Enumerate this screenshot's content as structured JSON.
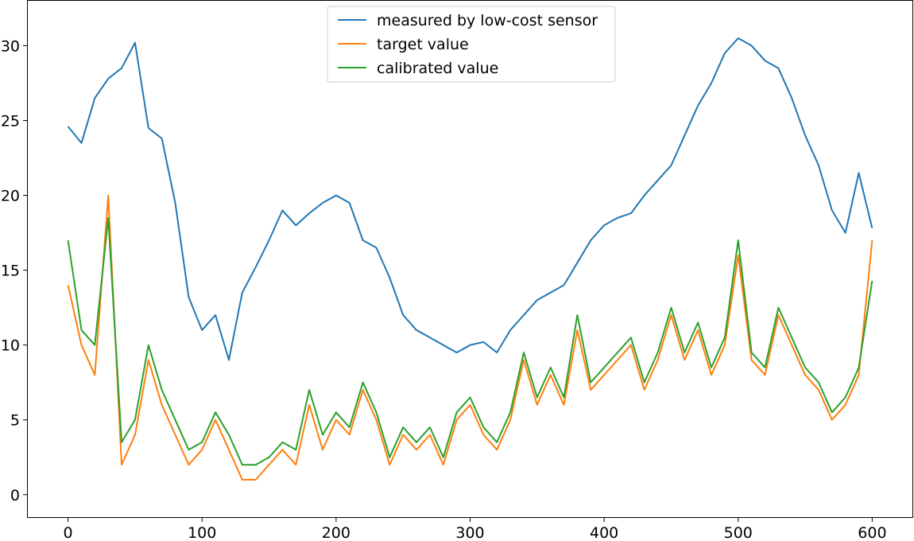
{
  "chart_data": {
    "type": "line",
    "title": "",
    "xlabel": "",
    "ylabel": "",
    "xlim": [
      -30,
      630
    ],
    "ylim": [
      -1.5,
      33
    ],
    "xticks": [
      0,
      100,
      200,
      300,
      400,
      500,
      600
    ],
    "yticks": [
      0,
      5,
      10,
      15,
      20,
      25,
      30
    ],
    "grid": false,
    "legend_position": "top-center",
    "x": [
      0,
      10,
      20,
      30,
      40,
      50,
      60,
      70,
      80,
      90,
      100,
      110,
      120,
      130,
      140,
      150,
      160,
      170,
      180,
      190,
      200,
      210,
      220,
      230,
      240,
      250,
      260,
      270,
      280,
      290,
      300,
      310,
      320,
      330,
      340,
      350,
      360,
      370,
      380,
      390,
      400,
      410,
      420,
      430,
      440,
      450,
      460,
      470,
      480,
      490,
      500,
      510,
      520,
      530,
      540,
      550,
      560,
      570,
      580,
      590,
      600
    ],
    "series": [
      {
        "name": "measured by low-cost sensor",
        "color": "#1f77b4",
        "values": [
          24.6,
          23.5,
          26.5,
          27.8,
          28.5,
          30.2,
          24.5,
          23.8,
          19.5,
          13.2,
          11.0,
          12.0,
          9.0,
          13.5,
          15.2,
          17.0,
          19.0,
          18.0,
          18.8,
          19.5,
          20.0,
          19.5,
          17.0,
          16.5,
          14.5,
          12.0,
          11.0,
          10.5,
          10.0,
          9.5,
          10.0,
          10.2,
          9.5,
          11.0,
          12.0,
          13.0,
          13.5,
          14.0,
          15.5,
          17.0,
          18.0,
          18.5,
          18.8,
          20.0,
          21.0,
          22.0,
          24.0,
          26.0,
          27.5,
          29.5,
          30.5,
          30.0,
          29.0,
          28.5,
          26.5,
          24.0,
          22.0,
          19.0,
          17.5,
          21.5,
          17.8
        ]
      },
      {
        "name": "target value",
        "color": "#ff7f0e",
        "values": [
          14.0,
          10.0,
          8.0,
          20.0,
          2.0,
          4.0,
          9.0,
          6.0,
          4.0,
          2.0,
          3.0,
          5.0,
          3.0,
          1.0,
          1.0,
          2.0,
          3.0,
          2.0,
          6.0,
          3.0,
          5.0,
          4.0,
          7.0,
          5.0,
          2.0,
          4.0,
          3.0,
          4.0,
          2.0,
          5.0,
          6.0,
          4.0,
          3.0,
          5.0,
          9.0,
          6.0,
          8.0,
          6.0,
          11.0,
          7.0,
          8.0,
          9.0,
          10.0,
          7.0,
          9.0,
          12.0,
          9.0,
          11.0,
          8.0,
          10.0,
          16.0,
          9.0,
          8.0,
          12.0,
          10.0,
          8.0,
          7.0,
          5.0,
          6.0,
          8.0,
          17.0
        ]
      },
      {
        "name": "calibrated value",
        "color": "#2ca02c",
        "values": [
          17.0,
          11.0,
          10.0,
          18.5,
          3.5,
          5.0,
          10.0,
          7.0,
          5.0,
          3.0,
          3.5,
          5.5,
          4.0,
          2.0,
          2.0,
          2.5,
          3.5,
          3.0,
          7.0,
          4.0,
          5.5,
          4.5,
          7.5,
          5.5,
          2.5,
          4.5,
          3.5,
          4.5,
          2.5,
          5.5,
          6.5,
          4.5,
          3.5,
          5.5,
          9.5,
          6.5,
          8.5,
          6.5,
          12.0,
          7.5,
          8.5,
          9.5,
          10.5,
          7.5,
          9.5,
          12.5,
          9.5,
          11.5,
          8.5,
          10.5,
          17.0,
          9.5,
          8.5,
          12.5,
          10.5,
          8.5,
          7.5,
          5.5,
          6.5,
          8.5,
          14.3
        ]
      }
    ]
  }
}
